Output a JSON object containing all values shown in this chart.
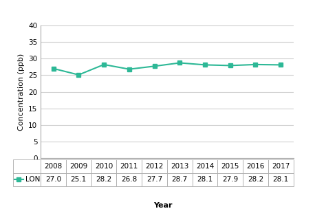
{
  "years": [
    2008,
    2009,
    2010,
    2011,
    2012,
    2013,
    2014,
    2015,
    2016,
    2017
  ],
  "values": [
    27.0,
    25.1,
    28.2,
    26.8,
    27.7,
    28.7,
    28.1,
    27.9,
    28.2,
    28.1
  ],
  "label": "LON",
  "line_color": "#2db896",
  "marker": "s",
  "marker_size": 5,
  "ylabel": "Concentration (ppb)",
  "xlabel": "Year",
  "ylim": [
    0,
    40
  ],
  "yticks": [
    0,
    5,
    10,
    15,
    20,
    25,
    30,
    35,
    40
  ],
  "table_values": [
    "27.0",
    "25.1",
    "28.2",
    "26.8",
    "27.7",
    "28.7",
    "28.1",
    "27.9",
    "28.2",
    "28.1"
  ],
  "background_color": "#ffffff",
  "grid_color": "#d0d0d0",
  "axis_fontsize": 8,
  "tick_fontsize": 7.5,
  "table_fontsize": 7.5
}
